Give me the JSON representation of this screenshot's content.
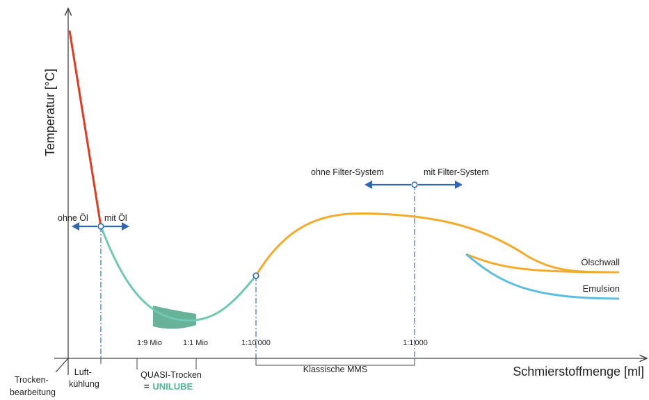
{
  "axes": {
    "y_label": "Temperatur [°C]",
    "x_label": "Schmierstoffmenge [ml]"
  },
  "ticks": {
    "t1": "1:9 Mio",
    "t2": "1:1 Mio",
    "t3": "1:10'000",
    "t4": "1:1'000"
  },
  "regions": {
    "dry_line1": "Trocken-",
    "dry_line2": "bearbeitung",
    "air_line1": "Luft-",
    "air_line2": "kühlung",
    "quasi_line1": "QUASI-Trocken",
    "quasi_prefix": "=",
    "quasi_brand": "UNILUBE",
    "mms": "Klassische MMS"
  },
  "arrows": {
    "without_oil": "ohne Öl",
    "with_oil": "mit Öl",
    "without_filter": "ohne Filter-System",
    "with_filter": "mit Filter-System"
  },
  "series": {
    "oil_flood": "Ölschwall",
    "emulsion": "Emulsion"
  },
  "colors": {
    "red": "#e23a1e",
    "teal": "#6fc9b1",
    "band": "#3f9c7e",
    "orange": "#f3ab2b",
    "blue": "#5cbde2",
    "arrow": "#2f66b3",
    "brand": "#52b596"
  }
}
